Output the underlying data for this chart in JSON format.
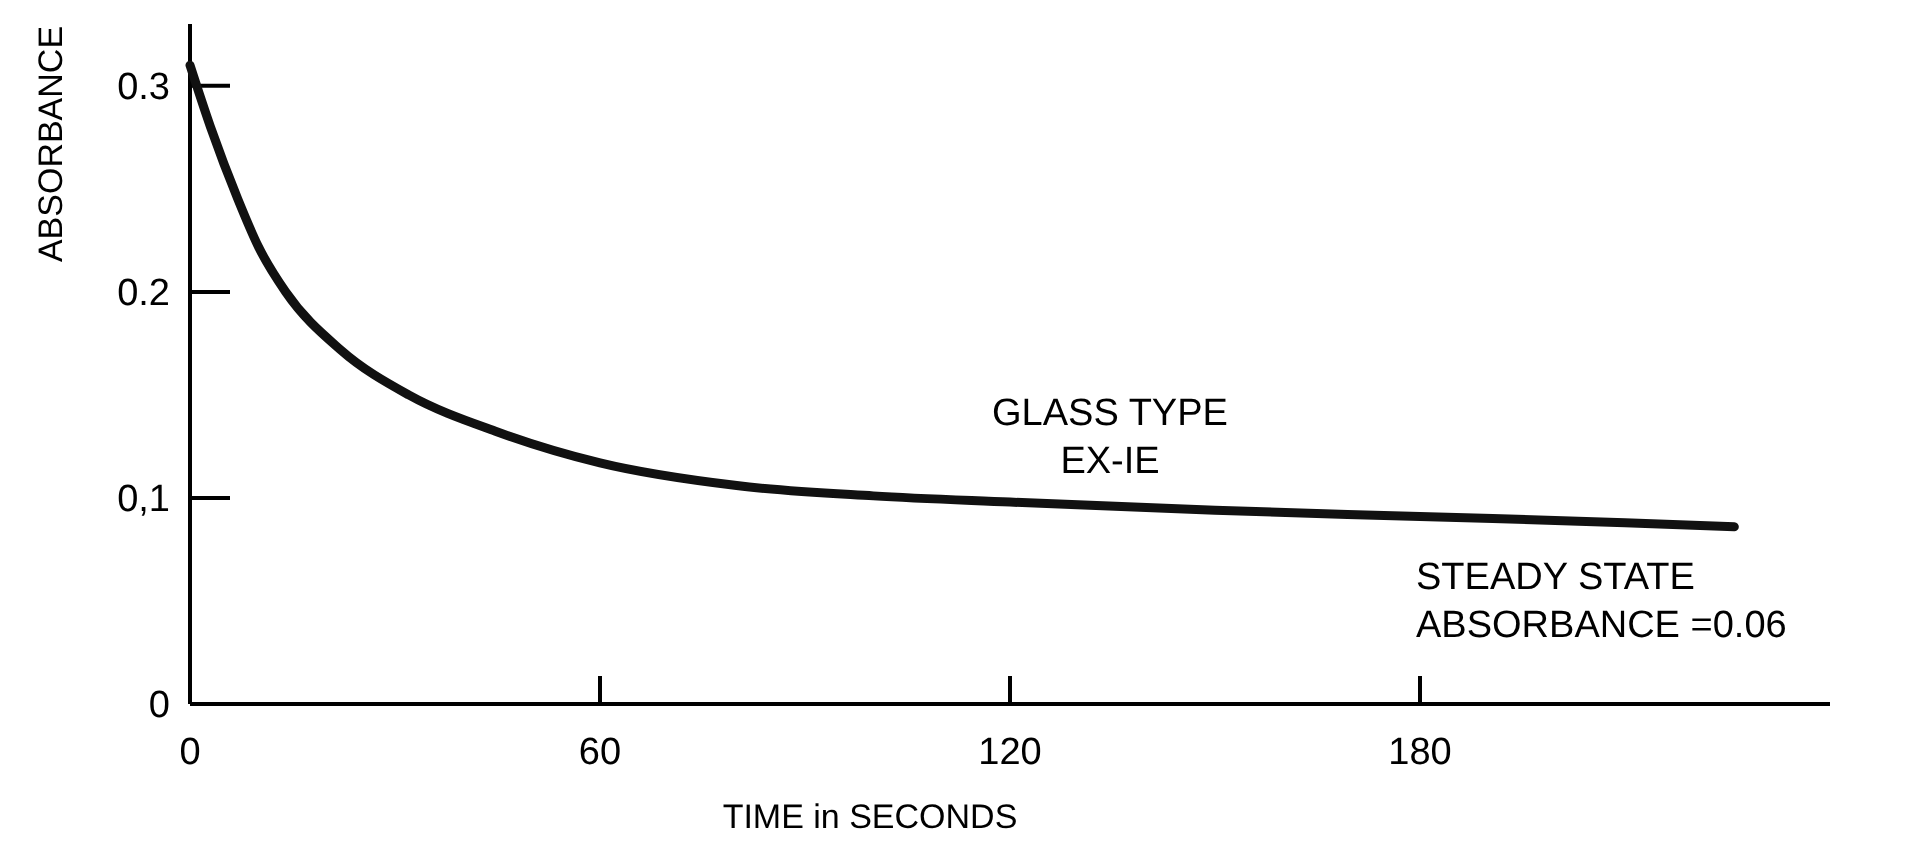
{
  "chart_data": {
    "type": "line",
    "xlabel": "TIME in SECONDS",
    "ylabel": "ABSORBANCE",
    "x": [
      0,
      3,
      7,
      10,
      14,
      22,
      32,
      45,
      60,
      80,
      100,
      120,
      150,
      180,
      210,
      226
    ],
    "series": [
      {
        "color": "#111111",
        "values": [
          0.31,
          0.28,
          0.245,
          0.222,
          0.2,
          0.172,
          0.15,
          0.132,
          0.117,
          0.106,
          0.101,
          0.098,
          0.094,
          0.091,
          0.088,
          0.086
        ]
      }
    ],
    "xlim": [
      0,
      240
    ],
    "xticks": [
      0,
      60,
      120,
      180
    ],
    "ylim": [
      0,
      0.33
    ],
    "yticks": [
      0,
      {
        "value": 0.1,
        "label": "0,1"
      },
      0.2,
      0.3
    ],
    "grid": false,
    "marker": "none",
    "line_style": "solid",
    "annotations": [
      "GLASS TYPE\nEX-IE",
      "STEADY STATE\nABSORBANCE =0.06"
    ]
  }
}
